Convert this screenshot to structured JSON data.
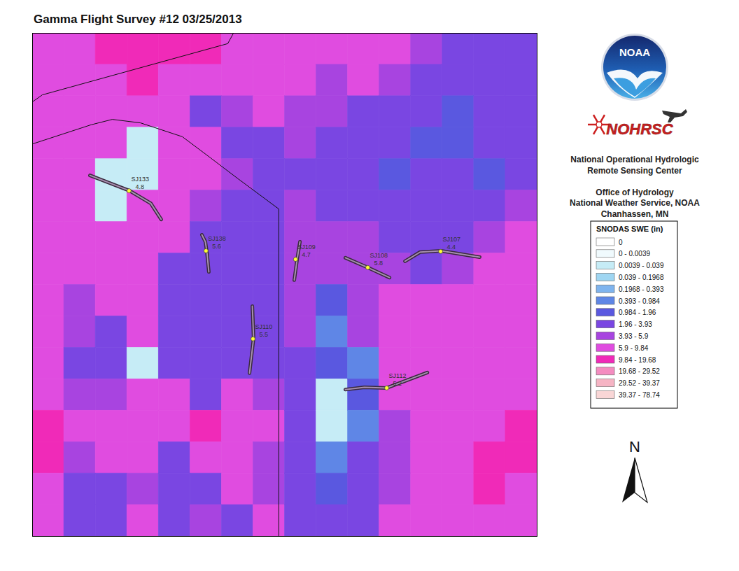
{
  "chart_data": {
    "type": "map",
    "title": "Gamma Flight Survey #12 03/25/2013",
    "xlim": [
      0,
      16
    ],
    "ylim": [
      0,
      16
    ],
    "tick_labels": false,
    "cells": [
      [
        7,
        7,
        12,
        12,
        12,
        12,
        7,
        7,
        7,
        7,
        7,
        7,
        5,
        3,
        3,
        3
      ],
      [
        7,
        7,
        7,
        12,
        7,
        7,
        7,
        7,
        7,
        5,
        7,
        5,
        3,
        3,
        3,
        3
      ],
      [
        7,
        7,
        7,
        7,
        7,
        3,
        5,
        7,
        5,
        5,
        3,
        3,
        3,
        1.5,
        3,
        3
      ],
      [
        7,
        7,
        7,
        0.02,
        7,
        7,
        3,
        3,
        5,
        3,
        3,
        3,
        1.5,
        1.5,
        3,
        3
      ],
      [
        7,
        7,
        0.02,
        0.02,
        7,
        7,
        5,
        3,
        3,
        3,
        3,
        1.5,
        3,
        3,
        1.5,
        3
      ],
      [
        7,
        7,
        0.02,
        7,
        7,
        5,
        3,
        3,
        5,
        3,
        3,
        3,
        3,
        3,
        3,
        5
      ],
      [
        7,
        7,
        7,
        7,
        7,
        3,
        3,
        3,
        5,
        5,
        5,
        3,
        3,
        3,
        5,
        7
      ],
      [
        7,
        7,
        7,
        7,
        3,
        3,
        3,
        3,
        5,
        5,
        5,
        5,
        3,
        5,
        7,
        7
      ],
      [
        7,
        5,
        7,
        7,
        3,
        3,
        3,
        3,
        5,
        1.5,
        5,
        7,
        7,
        7,
        7,
        7
      ],
      [
        7,
        5,
        3,
        7,
        3,
        3,
        3,
        3,
        5,
        0.6,
        5,
        7,
        7,
        7,
        7,
        7
      ],
      [
        7,
        3,
        3,
        0.02,
        3,
        3,
        3,
        3,
        3,
        1.5,
        0.6,
        7,
        7,
        7,
        7,
        7
      ],
      [
        7,
        5,
        5,
        7,
        7,
        3,
        7,
        5,
        3,
        0.02,
        1.5,
        7,
        7,
        7,
        7,
        7
      ],
      [
        12,
        7,
        7,
        7,
        7,
        12,
        7,
        7,
        3,
        0.02,
        0.6,
        5,
        7,
        7,
        7,
        12
      ],
      [
        12,
        5,
        7,
        7,
        3,
        7,
        7,
        5,
        3,
        0.6,
        3,
        5,
        7,
        7,
        12,
        12
      ],
      [
        7,
        3,
        3,
        5,
        3,
        3,
        7,
        5,
        3,
        1.5,
        3,
        5,
        7,
        7,
        12,
        7
      ],
      [
        7,
        3,
        3,
        7,
        3,
        5,
        3,
        7,
        3,
        3,
        3,
        7,
        7,
        7,
        7,
        7
      ]
    ],
    "boundaries": [
      [
        [
          6.37,
          0
        ],
        [
          6.19,
          0.33
        ],
        [
          0.31,
          1.96
        ],
        [
          0,
          2.18
        ]
      ],
      [
        [
          0,
          3.52
        ],
        [
          1.86,
          2.91
        ],
        [
          2.53,
          2.74
        ],
        [
          3.42,
          2.85
        ],
        [
          4.75,
          3.29
        ],
        [
          5.64,
          3.96
        ],
        [
          6.52,
          4.63
        ],
        [
          7.81,
          5.59
        ],
        [
          7.81,
          16
        ]
      ]
    ],
    "flight_lines": [
      {
        "name": "SJ133",
        "value": 4.8,
        "path": [
          [
            1.82,
            4.52
          ],
          [
            3.08,
            5.01
          ],
          [
            3.75,
            5.41
          ],
          [
            4.08,
            5.92
          ]
        ],
        "point": [
          3.06,
          5.01
        ]
      },
      {
        "name": "SJ138",
        "value": 5.6,
        "path": [
          [
            5.37,
            6.41
          ],
          [
            5.48,
            6.63
          ],
          [
            5.53,
            6.96
          ],
          [
            5.59,
            7.59
          ]
        ],
        "point": [
          5.5,
          6.92
        ]
      },
      {
        "name": "SJ109",
        "value": 4.7,
        "path": [
          [
            8.48,
            6.63
          ],
          [
            8.39,
            7.19
          ],
          [
            8.3,
            7.85
          ]
        ],
        "point": [
          8.34,
          7.19
        ]
      },
      {
        "name": "SJ108",
        "value": 5.8,
        "path": [
          [
            9.92,
            7.14
          ],
          [
            10.63,
            7.45
          ],
          [
            11.32,
            7.77
          ]
        ],
        "point": [
          10.63,
          7.45
        ]
      },
      {
        "name": "SJ107",
        "value": 4.4,
        "path": [
          [
            11.81,
            7.25
          ],
          [
            12.29,
            6.96
          ],
          [
            12.96,
            6.92
          ],
          [
            14.18,
            7.12
          ]
        ],
        "point": [
          12.94,
          6.94
        ]
      },
      {
        "name": "SJ110",
        "value": 5.5,
        "path": [
          [
            6.97,
            8.68
          ],
          [
            7.01,
            9.7
          ],
          [
            6.88,
            10.81
          ]
        ],
        "point": [
          6.99,
          9.72
        ]
      },
      {
        "name": "SJ112",
        "value": 5.2,
        "path": [
          [
            9.92,
            11.33
          ],
          [
            10.52,
            11.26
          ],
          [
            11.23,
            11.28
          ],
          [
            12.52,
            10.79
          ]
        ],
        "point": [
          11.23,
          11.28
        ]
      }
    ],
    "colorbar": {
      "title": "SNODAS SWE (in)",
      "bins": [
        0,
        0.0039,
        0.039,
        0.1968,
        0.393,
        0.984,
        1.96,
        3.93,
        5.9,
        9.84,
        19.68,
        29.52,
        39.37,
        78.74
      ],
      "labels": [
        "0",
        "0 - 0.0039",
        "0.0039 - 0.039",
        "0.039 - 0.1968",
        "0.1968 - 0.393",
        "0.393 - 0.984",
        "0.984 - 1.96",
        "1.96 - 3.93",
        "3.93 - 5.9",
        "5.9 - 9.84",
        "9.84 - 19.68",
        "19.68 - 29.52",
        "29.52 - 39.37",
        "39.37 - 78.74"
      ],
      "colors": [
        "#ffffff",
        "#f0fafd",
        "#c6ecf6",
        "#9fd6f2",
        "#7fb4ee",
        "#5f86e6",
        "#5a58e0",
        "#7a46e2",
        "#a844e0",
        "#e04ce0",
        "#f02ab8",
        "#f48cc0",
        "#f6b4c4",
        "#f9d6d6"
      ]
    },
    "credits": {
      "logo": "NOAA",
      "agency": "NOHRSC",
      "lines": [
        "National Operational Hydrologic",
        "Remote Sensing Center",
        "",
        "Office of Hydrology",
        "National Weather Service, NOAA",
        "Chanhassen, MN"
      ]
    },
    "north": "N"
  }
}
